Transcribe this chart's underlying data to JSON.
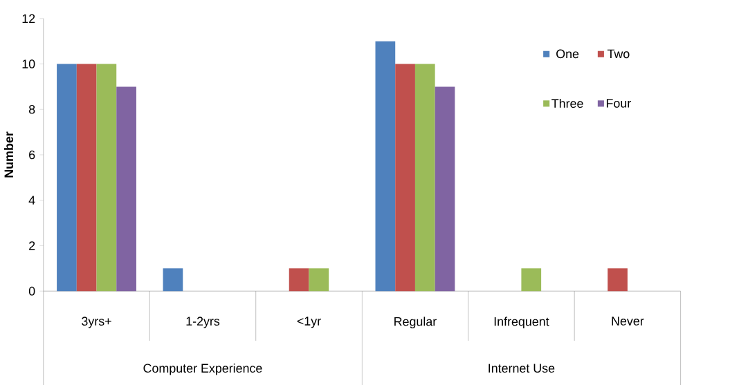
{
  "chart_data": {
    "type": "bar",
    "ylabel": "Number",
    "categories": [
      "3yrs+",
      "1-2yrs",
      "<1yr",
      "Regular",
      "Infrequent",
      "Never"
    ],
    "series": [
      {
        "name": "One",
        "color": "#4f81bd",
        "values": [
          10,
          1,
          0,
          11,
          0,
          0
        ]
      },
      {
        "name": "Two",
        "color": "#c0504d",
        "values": [
          10,
          0,
          1,
          10,
          0,
          1
        ]
      },
      {
        "name": "Three",
        "color": "#9bbb59",
        "values": [
          10,
          0,
          1,
          10,
          1,
          0
        ]
      },
      {
        "name": "Four",
        "color": "#8064a2",
        "values": [
          9,
          0,
          0,
          9,
          0,
          0
        ]
      }
    ],
    "ylim": [
      0,
      12
    ],
    "yticks": [
      0,
      2,
      4,
      6,
      8,
      10,
      12
    ],
    "grid": false,
    "legend": "top right",
    "annotations": [
      "Computer Experience",
      "Internet Use"
    ]
  }
}
